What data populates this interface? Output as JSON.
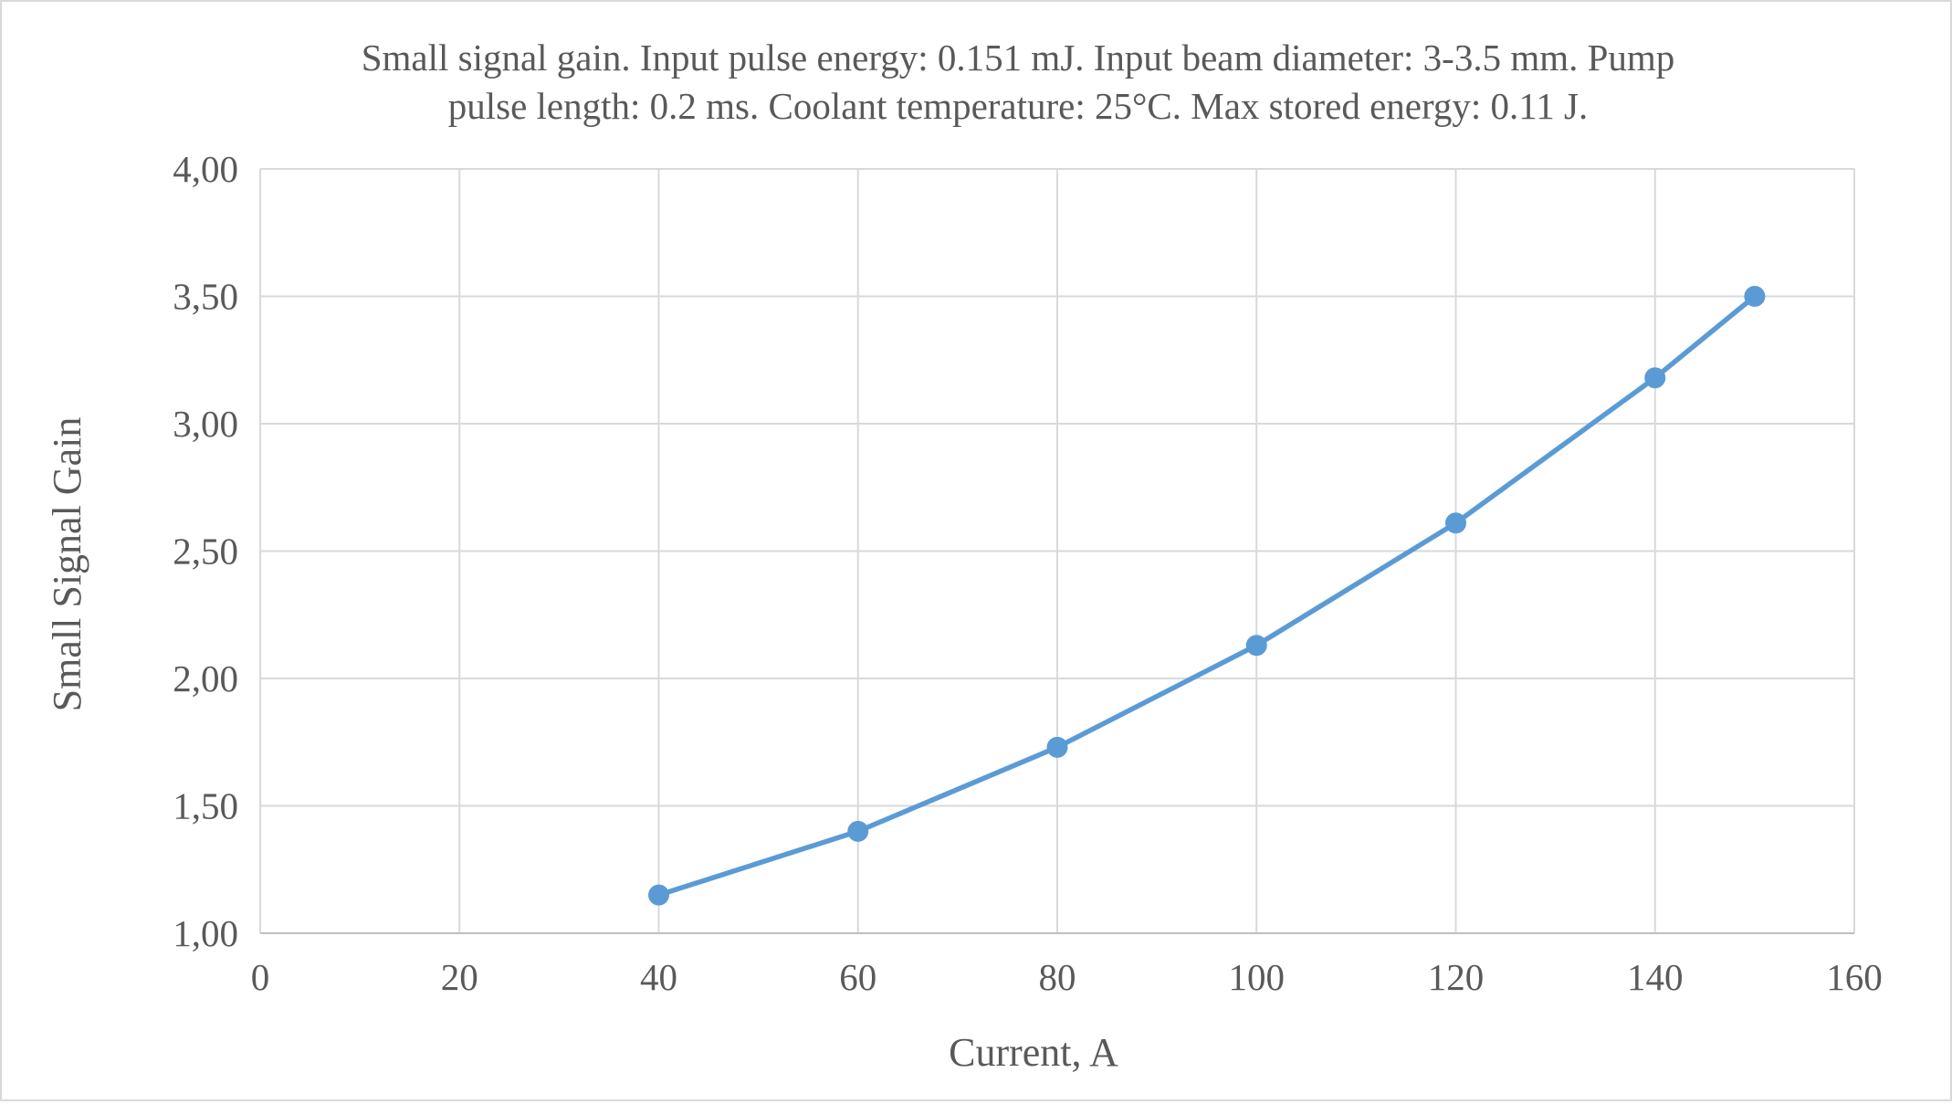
{
  "chart_data": {
    "type": "line",
    "title_lines": [
      "Small signal gain. Input pulse energy: 0.151 mJ. Input beam diameter: 3-3.5 mm. Pump",
      "pulse length: 0.2 ms. Coolant temperature: 25°C. Max stored energy: 0.11 J."
    ],
    "xlabel": "Current, A",
    "ylabel": "Small Signal Gain",
    "xlim": [
      0,
      160
    ],
    "ylim": [
      1.0,
      4.0
    ],
    "x_ticks": [
      0,
      20,
      40,
      60,
      80,
      100,
      120,
      140,
      160
    ],
    "x_tick_labels": [
      "0",
      "20",
      "40",
      "60",
      "80",
      "100",
      "120",
      "140",
      "160"
    ],
    "y_ticks": [
      1.0,
      1.5,
      2.0,
      2.5,
      3.0,
      3.5,
      4.0
    ],
    "y_tick_labels": [
      "1,00",
      "1,50",
      "2,00",
      "2,50",
      "3,00",
      "3,50",
      "4,00"
    ],
    "grid": true,
    "legend": "none",
    "series": [
      {
        "x": [
          40,
          60,
          80,
          100,
          120,
          140,
          150
        ],
        "values": [
          1.15,
          1.4,
          1.73,
          2.13,
          2.61,
          3.18,
          3.5
        ],
        "color": "#5B9BD5",
        "marker": "circle"
      }
    ]
  }
}
